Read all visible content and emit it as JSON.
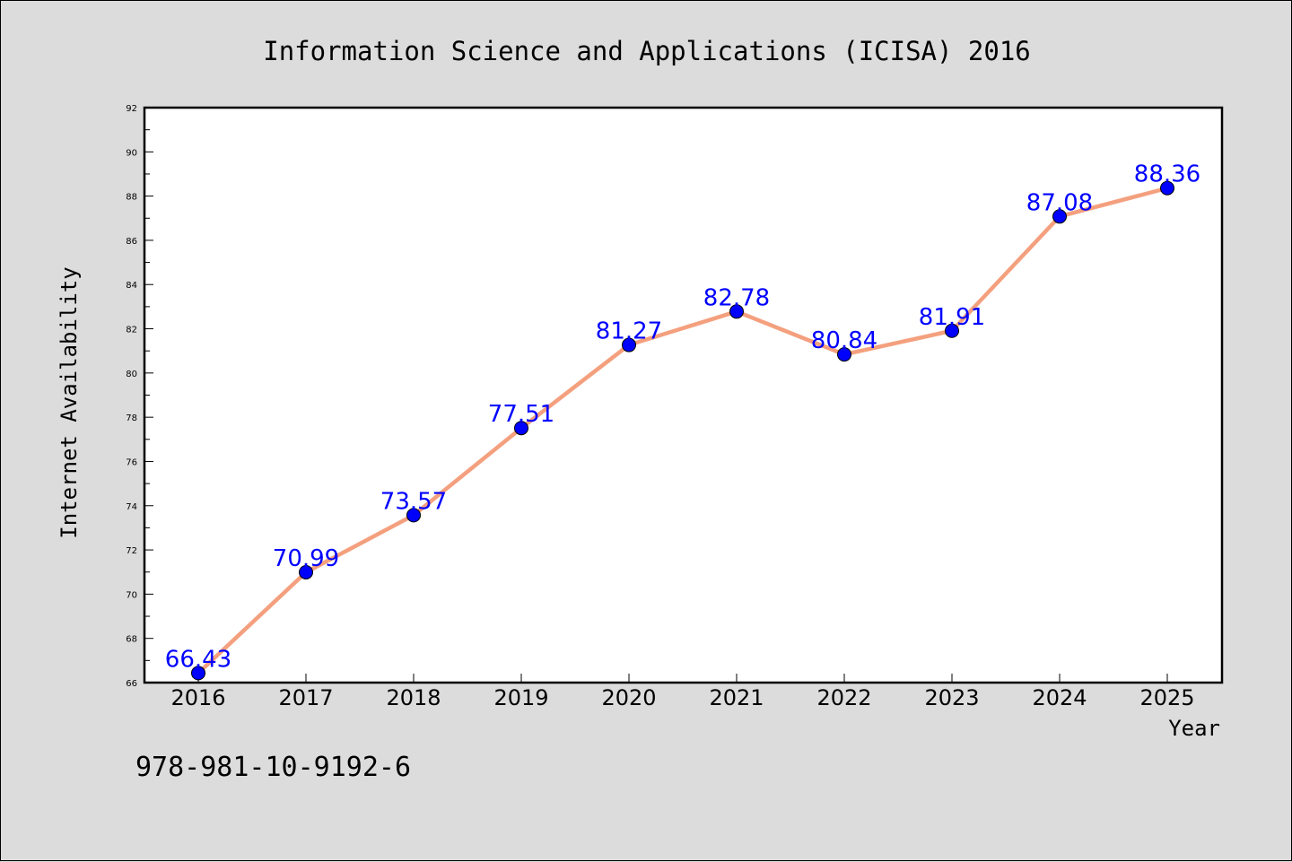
{
  "chart_data": {
    "type": "line",
    "title": "Information Science and Applications (ICISA) 2016",
    "xlabel": "Year",
    "ylabel": "Internet Availability",
    "categories": [
      "2016",
      "2017",
      "2018",
      "2019",
      "2020",
      "2021",
      "2022",
      "2023",
      "2024",
      "2025"
    ],
    "values": [
      66.43,
      70.99,
      73.57,
      77.51,
      81.27,
      82.78,
      80.84,
      81.91,
      87.08,
      88.36
    ],
    "data_labels": [
      "66.43",
      "70.99",
      "73.57",
      "77.51",
      "81.27",
      "82.78",
      "80.84",
      "81.91",
      "87.08",
      "88.36"
    ],
    "ylim": [
      66,
      92
    ],
    "yticks": [
      "66",
      "68",
      "70",
      "72",
      "74",
      "76",
      "78",
      "80",
      "82",
      "84",
      "86",
      "88",
      "90",
      "92"
    ],
    "grid": false,
    "legend": "none",
    "line_color": "#f4a07e",
    "marker_color": "#0000ff",
    "label_color": "#0000ff"
  },
  "footer": {
    "isbn": "978-981-10-9192-6"
  }
}
